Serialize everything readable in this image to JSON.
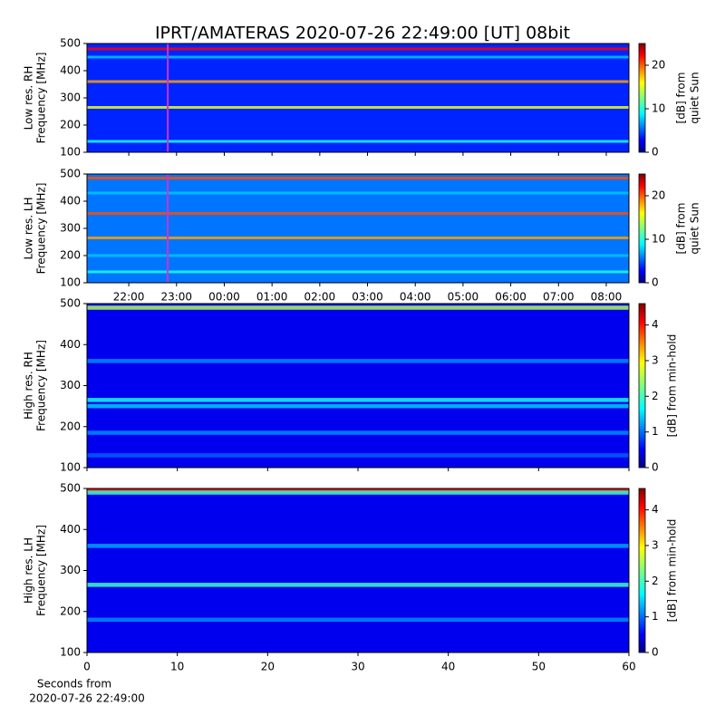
{
  "title": "IPRT/AMATERAS 2020-07-26 22:49:00 [UT]   08bit",
  "chart_data": [
    {
      "type": "spectrogram",
      "ylabel": [
        "Low res. RH",
        "Frequency [MHz]"
      ],
      "ylim": [
        100,
        500
      ],
      "yticks": [
        100,
        200,
        300,
        400,
        500
      ],
      "xlim": [
        21.125,
        32.475
      ],
      "xticks": [
        {
          "value": 22,
          "label": "22:00"
        },
        {
          "value": 23,
          "label": "23:00"
        },
        {
          "value": 24,
          "label": "00:00"
        },
        {
          "value": 25,
          "label": "01:00"
        },
        {
          "value": 26,
          "label": "02:00"
        },
        {
          "value": 27,
          "label": "03:00"
        },
        {
          "value": 28,
          "label": "04:00"
        },
        {
          "value": 29,
          "label": "05:00"
        },
        {
          "value": 30,
          "label": "06:00"
        },
        {
          "value": 31,
          "label": "07:00"
        },
        {
          "value": 32,
          "label": "08:00"
        }
      ],
      "show_xtick_labels": false,
      "marker_x": 22.8167,
      "marker_color": "#cc33cc",
      "background_level": 4,
      "bands": [
        {
          "freq": 480,
          "level": 22
        },
        {
          "freq": 450,
          "level": 8
        },
        {
          "freq": 360,
          "level": 18
        },
        {
          "freq": 265,
          "level": 15
        },
        {
          "freq": 140,
          "level": 10
        }
      ],
      "colorbar": {
        "label": [
          "[dB] from",
          "quiet Sun"
        ],
        "lim": [
          0,
          25
        ],
        "ticks": [
          0,
          10,
          20
        ],
        "colormap": "jet"
      }
    },
    {
      "type": "spectrogram",
      "ylabel": [
        "Low res. LH",
        "Frequency [MHz]"
      ],
      "ylim": [
        100,
        500
      ],
      "yticks": [
        100,
        200,
        300,
        400,
        500
      ],
      "xlim": [
        21.125,
        32.475
      ],
      "xticks": [
        {
          "value": 22,
          "label": "22:00"
        },
        {
          "value": 23,
          "label": "23:00"
        },
        {
          "value": 24,
          "label": "00:00"
        },
        {
          "value": 25,
          "label": "01:00"
        },
        {
          "value": 26,
          "label": "02:00"
        },
        {
          "value": 27,
          "label": "03:00"
        },
        {
          "value": 28,
          "label": "04:00"
        },
        {
          "value": 29,
          "label": "05:00"
        },
        {
          "value": 30,
          "label": "06:00"
        },
        {
          "value": 31,
          "label": "07:00"
        },
        {
          "value": 32,
          "label": "08:00"
        }
      ],
      "show_xtick_labels": true,
      "marker_x": 22.8167,
      "marker_color": "#cc33cc",
      "background_level": 6,
      "bands": [
        {
          "freq": 485,
          "level": 20
        },
        {
          "freq": 430,
          "level": 8
        },
        {
          "freq": 355,
          "level": 20
        },
        {
          "freq": 265,
          "level": 18
        },
        {
          "freq": 200,
          "level": 8
        },
        {
          "freq": 140,
          "level": 10
        }
      ],
      "colorbar": {
        "label": [
          "[dB] from",
          "quiet Sun"
        ],
        "lim": [
          0,
          25
        ],
        "ticks": [
          0,
          10,
          20
        ],
        "colormap": "jet"
      }
    },
    {
      "type": "spectrogram",
      "ylabel": [
        "High res. RH",
        "Frequency [MHz]"
      ],
      "ylim": [
        100,
        500
      ],
      "yticks": [
        100,
        200,
        300,
        400,
        500
      ],
      "xlim": [
        0,
        60
      ],
      "xticks": [
        0,
        10,
        20,
        30,
        40,
        50,
        60
      ],
      "show_xtick_labels": false,
      "background_level": 0.5,
      "bands": [
        {
          "freq": 490,
          "level": 2.5
        },
        {
          "freq": 360,
          "level": 1.2
        },
        {
          "freq": 265,
          "level": 1.8
        },
        {
          "freq": 250,
          "level": 1.5
        },
        {
          "freq": 185,
          "level": 1.2
        },
        {
          "freq": 130,
          "level": 1
        }
      ],
      "colorbar": {
        "label": [
          "[dB] from min-hold"
        ],
        "lim": [
          0,
          4.6
        ],
        "ticks": [
          0,
          1,
          2,
          3,
          4
        ],
        "colormap": "jet"
      }
    },
    {
      "type": "spectrogram",
      "ylabel": [
        "High res. LH",
        "Frequency [MHz]"
      ],
      "ylim": [
        100,
        500
      ],
      "yticks": [
        100,
        200,
        300,
        400,
        500
      ],
      "xlim": [
        0,
        60
      ],
      "xticks": [
        0,
        10,
        20,
        30,
        40,
        50,
        60
      ],
      "show_xtick_labels": true,
      "xlabel": [
        "Seconds from",
        "2020-07-26 22:49:00"
      ],
      "background_level": 0.5,
      "bands": [
        {
          "freq": 495,
          "level": 4
        },
        {
          "freq": 490,
          "level": 2
        },
        {
          "freq": 360,
          "level": 1.3
        },
        {
          "freq": 265,
          "level": 2
        },
        {
          "freq": 180,
          "level": 1.2
        }
      ],
      "colorbar": {
        "label": [
          "[dB] from min-hold"
        ],
        "lim": [
          0,
          4.6
        ],
        "ticks": [
          0,
          1,
          2,
          3,
          4
        ],
        "colormap": "jet"
      }
    }
  ]
}
